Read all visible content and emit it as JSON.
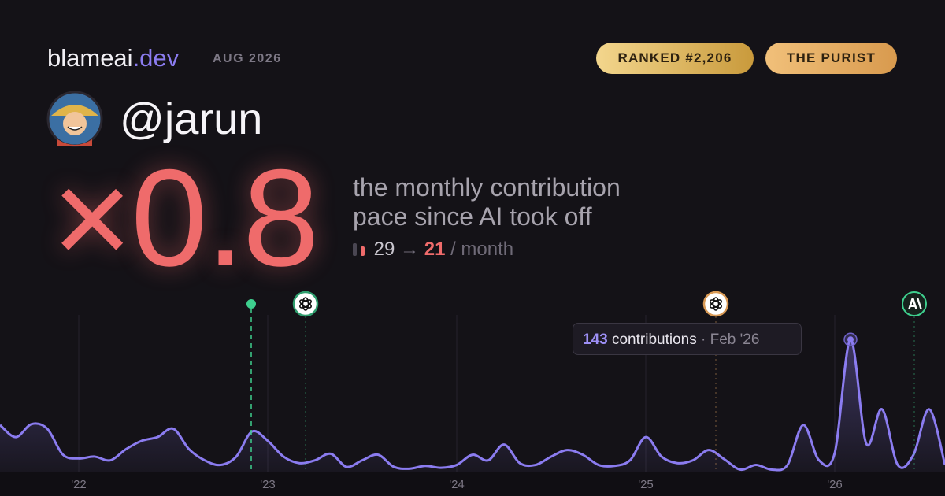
{
  "header": {
    "brand": "blameai",
    "brand_tld": ".dev",
    "date": "AUG 2026",
    "badges": [
      "RANKED #2,206",
      "THE PURIST"
    ]
  },
  "profile": {
    "username": "@jarun"
  },
  "headline": {
    "multiplier": "×0.8",
    "description": [
      "the monthly contribution",
      "pace since AI took off"
    ],
    "before": 29,
    "arrow": "→",
    "after": 21,
    "unit": "/ month"
  },
  "tooltip": {
    "value": 143,
    "label": "contributions",
    "separator": "·",
    "date": "Feb '26"
  },
  "chart_data": {
    "type": "area",
    "color": "#8b7cf0",
    "grid": true,
    "x": [
      0,
      1,
      2,
      3,
      4,
      5,
      6,
      7,
      8,
      9,
      10,
      11,
      12,
      13,
      14,
      15,
      16,
      17,
      18,
      19,
      20,
      21,
      22,
      23,
      24,
      25,
      26,
      27,
      28,
      29,
      30,
      31,
      32,
      33,
      34,
      35,
      36,
      37,
      38,
      39,
      40,
      41,
      42,
      43,
      44,
      45,
      46,
      47,
      48,
      49,
      50,
      51,
      52,
      53,
      54,
      55,
      56,
      57,
      58,
      59,
      60
    ],
    "values": [
      51,
      38,
      52,
      47,
      19,
      15,
      17,
      13,
      25,
      34,
      38,
      47,
      25,
      13,
      8,
      17,
      44,
      34,
      17,
      10,
      13,
      20,
      6,
      13,
      19,
      6,
      4,
      7,
      5,
      8,
      19,
      13,
      30,
      10,
      8,
      17,
      24,
      19,
      8,
      7,
      13,
      38,
      17,
      10,
      13,
      24,
      14,
      3,
      8,
      3,
      8,
      51,
      13,
      21,
      143,
      31,
      68,
      8,
      19,
      68,
      8
    ],
    "xlim": [
      0,
      60
    ],
    "xticks": [
      {
        "value": 5,
        "label": "'22"
      },
      {
        "value": 17,
        "label": "'23"
      },
      {
        "value": 29,
        "label": "'24"
      },
      {
        "value": 41,
        "label": "'25"
      },
      {
        "value": 53,
        "label": "'26"
      }
    ],
    "ylim": [
      0,
      150
    ]
  }
}
